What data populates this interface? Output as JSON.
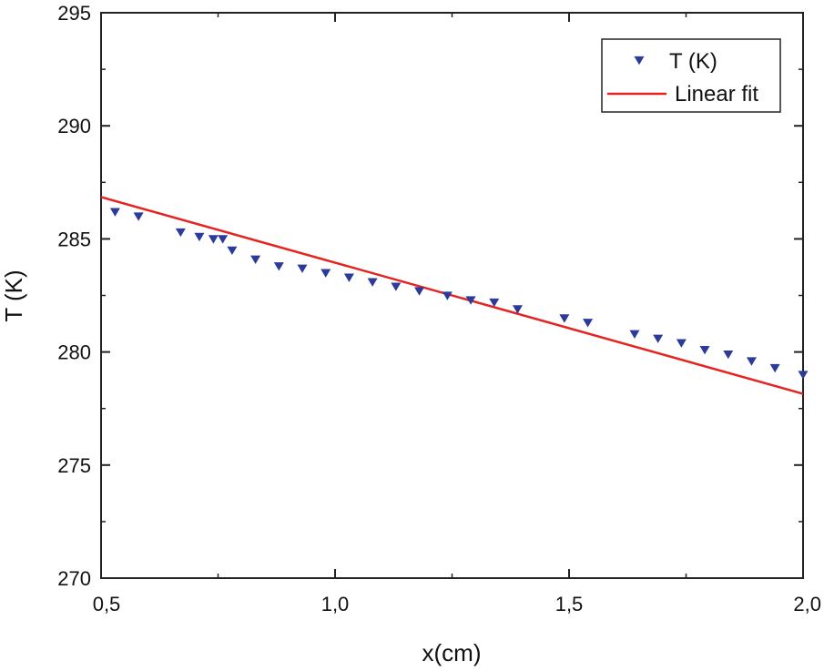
{
  "chart_data": {
    "type": "scatter",
    "title": "",
    "xlabel": "x(cm)",
    "ylabel": "T (K)",
    "xlim": [
      0.5,
      2.0
    ],
    "ylim": [
      270,
      295
    ],
    "x_ticks": [
      0.5,
      1.0,
      1.5,
      2.0
    ],
    "x_tick_labels": [
      "0,5",
      "1,0",
      "1,5",
      "2,0"
    ],
    "y_ticks": [
      270,
      275,
      280,
      285,
      290,
      295
    ],
    "y_tick_labels": [
      "270",
      "275",
      "280",
      "285",
      "290",
      "295"
    ],
    "grid": false,
    "legend_position": "top-right",
    "series": [
      {
        "name": "T (K)",
        "kind": "scatter",
        "marker": "triangle-down",
        "color": "#2b3a9b",
        "x": [
          0.53,
          0.58,
          0.67,
          0.71,
          0.74,
          0.76,
          0.78,
          0.83,
          0.88,
          0.93,
          0.98,
          1.03,
          1.08,
          1.13,
          1.18,
          1.24,
          1.29,
          1.34,
          1.39,
          1.49,
          1.54,
          1.64,
          1.69,
          1.74,
          1.79,
          1.84,
          1.89,
          1.94,
          2.0
        ],
        "y": [
          286.2,
          286.0,
          285.3,
          285.1,
          285.0,
          285.0,
          284.5,
          284.1,
          283.8,
          283.7,
          283.5,
          283.3,
          283.1,
          282.9,
          282.7,
          282.5,
          282.3,
          282.2,
          281.9,
          281.5,
          281.3,
          280.8,
          280.6,
          280.4,
          280.1,
          279.9,
          279.6,
          279.3,
          279.0
        ]
      },
      {
        "name": "Linear fit",
        "kind": "line",
        "color": "#e52421",
        "x": [
          0.5,
          2.0
        ],
        "y": [
          286.85,
          278.15
        ]
      }
    ]
  }
}
